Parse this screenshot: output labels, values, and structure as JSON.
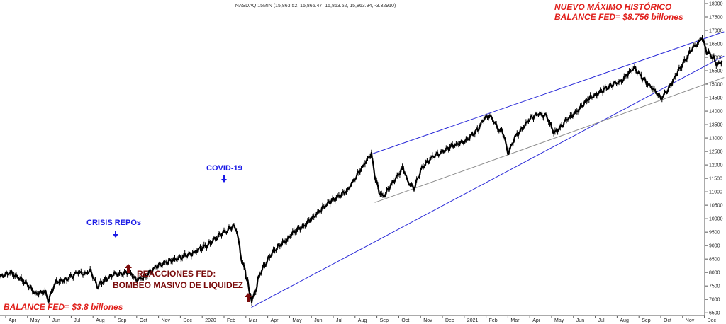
{
  "header": {
    "text": "NASDAQ 15MIN (15,863.52, 15,865.47, 15,863.52, 15,863.94, -3.32910)"
  },
  "colors": {
    "price": "#000000",
    "channel": "#2a2ad8",
    "gray_line": "#8c8c8c",
    "ann_red": "#e0201c",
    "ann_blue": "#1a1ae6",
    "ann_dark": "#7a0b0b",
    "axis": "#555555"
  },
  "annotations": {
    "top_right_1": "NUEVO MÁXIMO HISTÓRICO",
    "top_right_2": "BALANCE FED= $8.756  billones",
    "covid": "COVID-19",
    "repos": "CRISIS REPOs",
    "fed_1": "REACCIONES  FED:",
    "fed_2": "BOMBEO MASIVO DE LIQUIDEZ",
    "balance_bottom": "BALANCE FED= $3.8 billones"
  },
  "chart_data": {
    "type": "line",
    "title": "NASDAQ 15MIN (15,863.52, 15,865.47, 15,863.52, 15,863.94, -3.32910)",
    "xlabel": "",
    "ylabel": "",
    "ylim": [
      6400,
      18000
    ],
    "y_ticks": [
      6500,
      7000,
      7500,
      8000,
      8500,
      9000,
      9500,
      10000,
      10500,
      11000,
      11500,
      12000,
      12500,
      13000,
      13500,
      14000,
      14500,
      15000,
      15500,
      16000,
      16500,
      17000,
      17500,
      18000
    ],
    "x_ticks": [
      {
        "label": "Apr",
        "t": 0.0
      },
      {
        "label": "May",
        "t": 1.0
      },
      {
        "label": "Jun",
        "t": 2.0
      },
      {
        "label": "Jul",
        "t": 3.0
      },
      {
        "label": "Aug",
        "t": 4.0
      },
      {
        "label": "Sep",
        "t": 5.0
      },
      {
        "label": "Oct",
        "t": 6.0
      },
      {
        "label": "Nov",
        "t": 7.0
      },
      {
        "label": "Dec",
        "t": 8.0
      },
      {
        "label": "2020",
        "t": 9.0
      },
      {
        "label": "Feb",
        "t": 10.0
      },
      {
        "label": "Mar",
        "t": 11.0
      },
      {
        "label": "Apr",
        "t": 12.0
      },
      {
        "label": "May",
        "t": 13.0
      },
      {
        "label": "Jun",
        "t": 14.0
      },
      {
        "label": "Jul",
        "t": 15.0
      },
      {
        "label": "Aug",
        "t": 16.0
      },
      {
        "label": "Sep",
        "t": 17.0
      },
      {
        "label": "Oct",
        "t": 18.0
      },
      {
        "label": "Nov",
        "t": 19.0
      },
      {
        "label": "Dec",
        "t": 20.0
      },
      {
        "label": "2021",
        "t": 21.0
      },
      {
        "label": "Feb",
        "t": 22.0
      },
      {
        "label": "Mar",
        "t": 23.0
      },
      {
        "label": "Apr",
        "t": 24.0
      },
      {
        "label": "May",
        "t": 25.0
      },
      {
        "label": "Jun",
        "t": 26.0
      },
      {
        "label": "Jul",
        "t": 27.0
      },
      {
        "label": "Aug",
        "t": 28.0
      },
      {
        "label": "Sep",
        "t": 29.0
      },
      {
        "label": "Oct",
        "t": 30.0
      },
      {
        "label": "Nov",
        "t": 31.0
      },
      {
        "label": "Dec",
        "t": 32.0
      }
    ],
    "xlim": [
      -0.5,
      32.9
    ],
    "series": [
      {
        "values_t": [
          -0.5,
          0.2,
          0.6,
          1.0,
          1.4,
          1.8,
          1.95,
          2.3,
          2.8,
          3.3,
          3.6,
          3.9,
          4.2,
          4.6,
          5.0,
          5.3,
          5.7,
          6.0,
          6.4,
          6.8,
          7.2,
          7.6,
          8.0,
          8.5,
          9.0,
          9.4,
          9.8,
          10.2,
          10.45,
          10.6,
          10.8,
          11.0,
          11.15,
          11.3,
          11.45,
          11.6,
          11.75,
          11.95,
          12.2,
          12.5,
          12.8,
          13.2,
          13.6,
          14.0,
          14.4,
          14.8,
          15.2,
          15.6,
          16.0,
          16.4,
          16.75,
          16.9,
          17.1,
          17.3,
          17.6,
          17.9,
          18.2,
          18.4,
          18.7,
          19.0,
          19.3,
          19.6,
          20.0,
          20.4,
          20.8,
          21.2,
          21.6,
          21.95,
          22.2,
          22.5,
          22.8,
          23.0,
          23.3,
          23.6,
          24.0,
          24.4,
          24.8,
          25.1,
          25.4,
          25.8,
          26.2,
          26.6,
          27.0,
          27.4,
          27.8,
          28.2,
          28.5,
          28.8,
          29.1,
          29.4,
          29.7,
          30.0,
          30.3,
          30.6,
          30.9,
          31.2,
          31.5,
          31.7,
          31.9,
          32.1,
          32.4,
          32.6,
          32.8
        ],
        "values": [
          7750,
          8000,
          7800,
          7550,
          7200,
          7300,
          6950,
          7650,
          7750,
          8000,
          7950,
          8050,
          7500,
          7750,
          7950,
          7950,
          8000,
          7700,
          7850,
          8150,
          8350,
          8450,
          8550,
          8700,
          8900,
          9100,
          9400,
          9600,
          9750,
          9500,
          8500,
          8000,
          7300,
          6950,
          7400,
          7800,
          8150,
          8400,
          8700,
          9000,
          9150,
          9500,
          9700,
          10000,
          10300,
          10600,
          10800,
          11000,
          11500,
          12000,
          12400,
          11600,
          11000,
          10800,
          11200,
          11550,
          11900,
          11400,
          11100,
          11800,
          12100,
          12300,
          12500,
          12700,
          12800,
          13000,
          13300,
          13750,
          13850,
          13400,
          13200,
          12400,
          13000,
          13300,
          13700,
          13900,
          13800,
          13200,
          13400,
          13750,
          14000,
          14400,
          14600,
          14800,
          15000,
          15100,
          15400,
          15600,
          15300,
          15000,
          14800,
          14500,
          14750,
          15200,
          15600,
          16000,
          16400,
          16500,
          16750,
          16200,
          16000,
          15700,
          15864
        ]
      }
    ],
    "trendlines": [
      {
        "name": "",
        "from": [
          16.75,
          12400
        ],
        "to": [
          32.9,
          16950
        ]
      },
      {
        "name": "",
        "from": [
          11.25,
          6700
        ],
        "to": [
          32.9,
          16050
        ]
      },
      {
        "name": "",
        "from": [
          16.9,
          10600
        ],
        "to": [
          32.9,
          15250
        ]
      }
    ],
    "last_value": 15864
  }
}
